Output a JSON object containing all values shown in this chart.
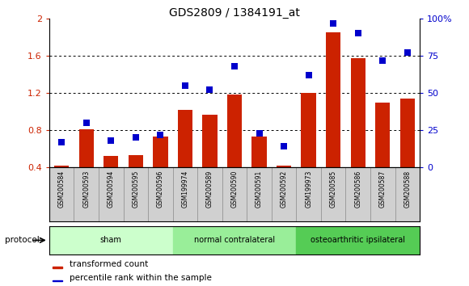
{
  "title": "GDS2809 / 1384191_at",
  "samples": [
    "GSM200584",
    "GSM200593",
    "GSM200594",
    "GSM200595",
    "GSM200596",
    "GSM199974",
    "GSM200589",
    "GSM200590",
    "GSM200591",
    "GSM200592",
    "GSM199973",
    "GSM200585",
    "GSM200586",
    "GSM200587",
    "GSM200588"
  ],
  "transformed_count": [
    0.42,
    0.81,
    0.52,
    0.53,
    0.73,
    1.02,
    0.97,
    1.18,
    0.73,
    0.42,
    1.2,
    1.85,
    1.57,
    1.1,
    1.14
  ],
  "percentile_rank": [
    17,
    30,
    18,
    20,
    22,
    55,
    52,
    68,
    23,
    14,
    62,
    97,
    90,
    72,
    77
  ],
  "groups": [
    {
      "label": "sham",
      "start": 0,
      "end": 5,
      "color": "#ccffcc"
    },
    {
      "label": "normal contralateral",
      "start": 5,
      "end": 10,
      "color": "#99ee99"
    },
    {
      "label": "osteoarthritic ipsilateral",
      "start": 10,
      "end": 15,
      "color": "#55cc55"
    }
  ],
  "bar_color": "#cc2200",
  "dot_color": "#0000cc",
  "ylim_left": [
    0.4,
    2.0
  ],
  "ylim_right": [
    0,
    100
  ],
  "yticks_left": [
    0.4,
    0.8,
    1.2,
    1.6,
    2.0
  ],
  "ytick_labels_left": [
    "0.4",
    "0.8",
    "1.2",
    "1.6",
    "2"
  ],
  "yticks_right": [
    0,
    25,
    50,
    75,
    100
  ],
  "ytick_labels_right": [
    "0",
    "25",
    "50",
    "75",
    "100%"
  ],
  "bg_color": "#d0d0d0",
  "plot_bg": "#ffffff",
  "legend_red": "transformed count",
  "legend_blue": "percentile rank within the sample",
  "protocol_label": "protocol"
}
